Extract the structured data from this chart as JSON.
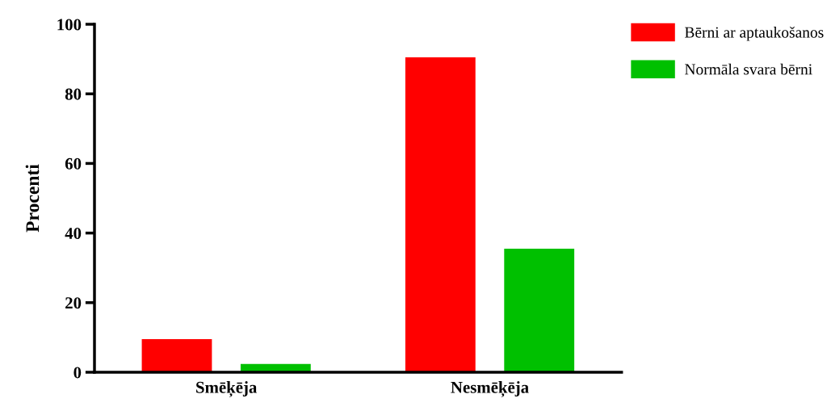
{
  "chart_data": {
    "type": "bar",
    "ylabel": "Procenti",
    "categories": [
      "Smēķēja",
      "Nesmēķēja"
    ],
    "series": [
      {
        "name": "Bērni ar aptaukošanos",
        "color": "#ff0000",
        "values": [
          9.5,
          90.5
        ]
      },
      {
        "name": "Normāla svara bērni",
        "color": "#00c000",
        "values": [
          2.4,
          35.5
        ]
      }
    ],
    "ylim": [
      0,
      100
    ],
    "yticks": [
      0,
      20,
      40,
      60,
      80,
      100
    ],
    "grid": false,
    "legend": "top right"
  }
}
